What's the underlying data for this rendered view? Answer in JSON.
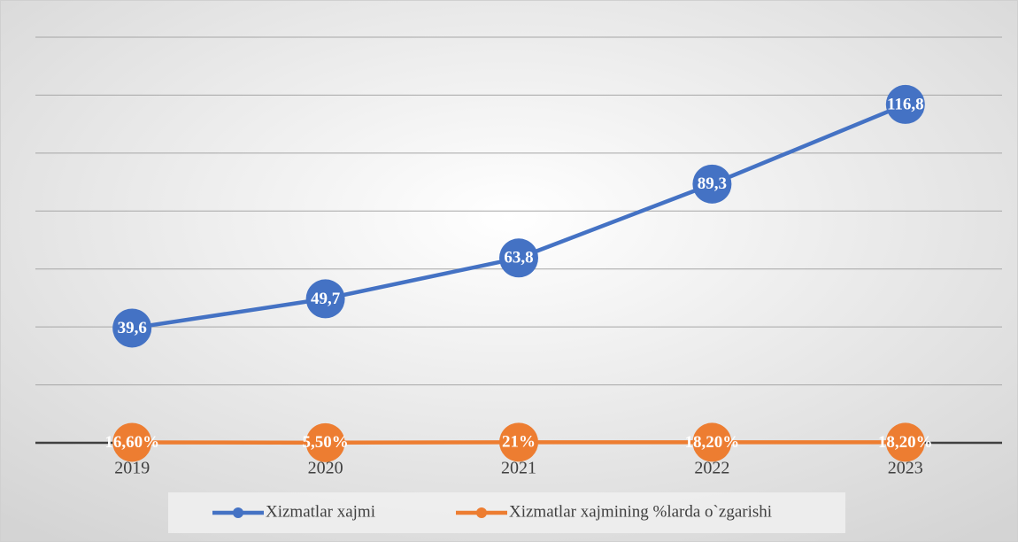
{
  "chart_data": {
    "type": "line",
    "categories": [
      "2019",
      "2020",
      "2021",
      "2022",
      "2023"
    ],
    "series": [
      {
        "name": "Xizmatlar xajmi",
        "color": "#4472c4",
        "values": [
          39.6,
          49.7,
          63.8,
          89.3,
          116.8
        ],
        "value_labels": [
          "39,6",
          "49,7",
          "63,8",
          "89,3",
          "116,8"
        ]
      },
      {
        "name": "Xizmatlar xajmining %larda o`zgarishi",
        "color": "#ed7d31",
        "values": [
          0.166,
          0.055,
          0.21,
          0.182,
          0.182
        ],
        "value_labels": [
          "16,60%",
          "5,50%",
          "21%",
          "18,20%",
          "18,20%"
        ]
      }
    ],
    "ylim": [
      0,
      140
    ],
    "yticks": [
      0,
      20,
      40,
      60,
      80,
      100,
      120,
      140
    ],
    "grid": true,
    "legend": "bottom"
  }
}
